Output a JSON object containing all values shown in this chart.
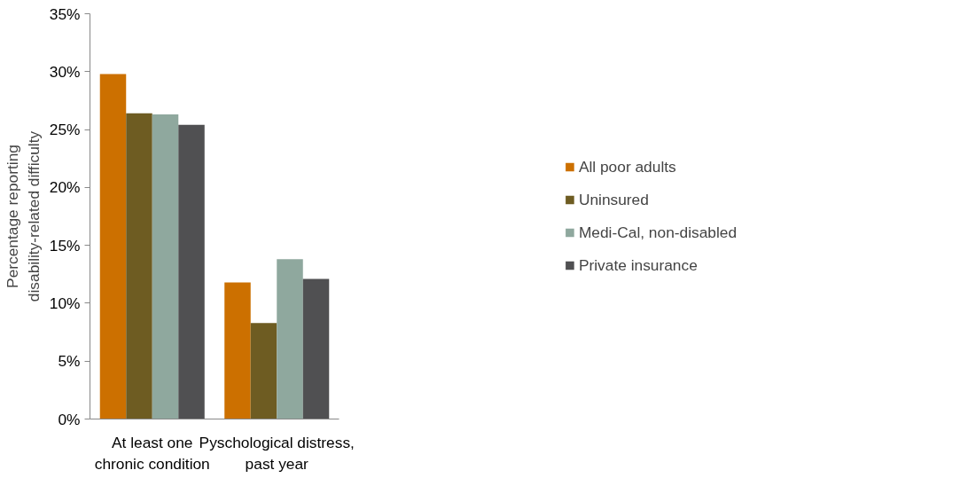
{
  "chart_data": {
    "type": "bar",
    "ylabel": "Percentage reporting\ndisability-related difficulty",
    "categories": [
      "At least one\nchronic condition",
      "Pyschological distress,\npast year"
    ],
    "series": [
      {
        "name": "All poor adults",
        "color": "#cc7000",
        "values": [
          29.8,
          11.8
        ]
      },
      {
        "name": "Uninsured",
        "color": "#6e5c22",
        "values": [
          26.4,
          8.3
        ]
      },
      {
        "name": "Medi-Cal, non-disabled",
        "color": "#8fa89e",
        "values": [
          26.3,
          13.8
        ]
      },
      {
        "name": "Private insurance",
        "color": "#505052",
        "values": [
          25.4,
          12.1
        ]
      }
    ],
    "ylim": [
      0,
      35
    ],
    "yticks": [
      {
        "value": 0,
        "label": "0%"
      },
      {
        "value": 5,
        "label": "5%"
      },
      {
        "value": 10,
        "label": "10%"
      },
      {
        "value": 15,
        "label": "15%"
      },
      {
        "value": 20,
        "label": "20%"
      },
      {
        "value": 25,
        "label": "25%"
      },
      {
        "value": 30,
        "label": "30%"
      },
      {
        "value": 35,
        "label": "35%"
      }
    ],
    "grid": false,
    "legend": "right"
  }
}
